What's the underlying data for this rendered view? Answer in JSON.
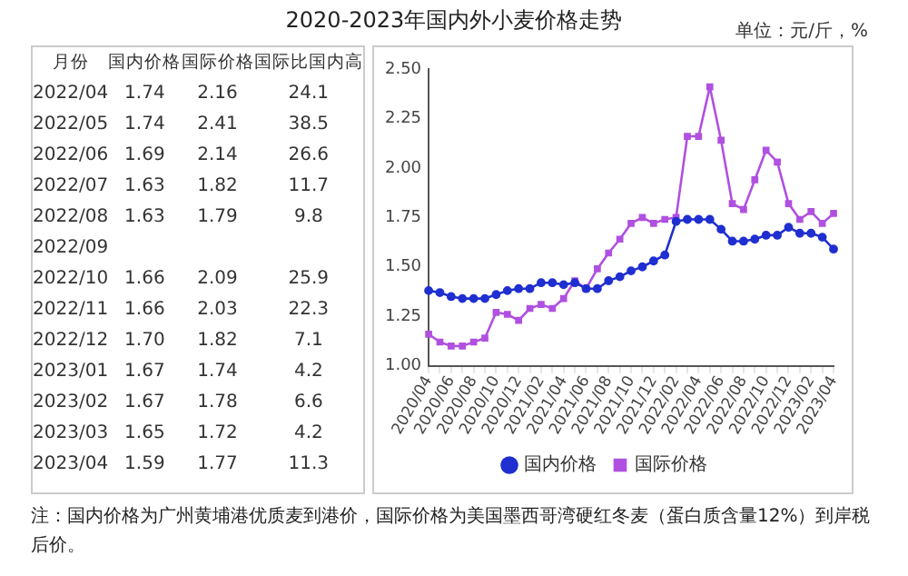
{
  "chart_data": [
    {
      "type": "other",
      "xlabel": "月份",
      "data_labels": true,
      "categories": [
        "2022/04",
        "2022/05",
        "2022/06",
        "2022/07",
        "2022/08",
        "2022/09",
        "2022/10",
        "2022/11",
        "2022/12",
        "2023/01",
        "2023/02",
        "2023/03",
        "2023/04"
      ],
      "series": [
        {
          "name": "国内价格",
          "values": [
            1.74,
            1.74,
            1.69,
            1.63,
            1.63,
            null,
            1.66,
            1.66,
            1.7,
            1.67,
            1.67,
            1.65,
            1.59
          ],
          "value_labels": [
            "1.74",
            "1.74",
            "1.69",
            "1.63",
            "1.63",
            null,
            "1.66",
            "1.66",
            "1.70",
            "1.67",
            "1.67",
            "1.65",
            "1.59"
          ]
        },
        {
          "name": "国际价格",
          "values": [
            2.16,
            2.41,
            2.14,
            1.82,
            1.79,
            null,
            2.09,
            2.03,
            1.82,
            1.74,
            1.78,
            1.72,
            1.77
          ]
        },
        {
          "name": "国际比国内高",
          "values": [
            24.1,
            38.5,
            26.6,
            11.7,
            9.8,
            null,
            25.9,
            22.3,
            7.1,
            4.2,
            6.6,
            4.2,
            11.3
          ]
        }
      ]
    },
    {
      "type": "line",
      "title": "2020-2023年国内外小麦价格走势",
      "annotations": [
        "单位：元/斤，%",
        "注：国内价格为广州黄埔港优质麦到港价，国际价格为美国墨西哥湾硬红冬麦（蛋白质含量12%）到岸税后价。"
      ],
      "categories": [
        "2020/04",
        null,
        "2020/06",
        null,
        "2020/08",
        null,
        "2020/10",
        null,
        "2020/12",
        null,
        "2021/02",
        null,
        "2021/04",
        null,
        "2021/06",
        null,
        "2021/08",
        null,
        "2021/10",
        null,
        "2021/12",
        null,
        "2022/02",
        null,
        "2022/04",
        null,
        "2022/06",
        null,
        "2022/08",
        null,
        "2022/10",
        null,
        "2022/12",
        null,
        "2023/02",
        null,
        "2023/04"
      ],
      "ylim": [
        1,
        2.5
      ],
      "yticks": [
        {
          "value": 1,
          "label": "1.00"
        },
        {
          "value": 1.25,
          "label": "1.25"
        },
        {
          "value": 1.5,
          "label": "1.50"
        },
        {
          "value": 1.75,
          "label": "1.75"
        },
        {
          "value": 2,
          "label": "2.00"
        },
        {
          "value": 2.25,
          "label": "2.25"
        },
        {
          "value": 2.5,
          "label": "2.50"
        }
      ],
      "grid": false,
      "legend": "bottom",
      "line_style": "solid",
      "series": [
        {
          "name": "国内价格",
          "color": "#1f2fd0",
          "marker": "circle",
          "values": [
            1.38,
            1.37,
            1.35,
            1.34,
            1.34,
            1.34,
            1.36,
            1.38,
            1.39,
            1.39,
            1.42,
            1.42,
            1.41,
            1.42,
            1.39,
            1.39,
            1.43,
            1.45,
            1.48,
            1.5,
            1.53,
            1.56,
            1.73,
            1.74,
            1.74,
            1.74,
            1.69,
            1.63,
            1.63,
            1.64,
            1.66,
            1.66,
            1.7,
            1.67,
            1.67,
            1.65,
            1.59
          ]
        },
        {
          "name": "国际价格",
          "color": "#b050e0",
          "marker": "square",
          "values": [
            1.16,
            1.12,
            1.1,
            1.1,
            1.12,
            1.14,
            1.27,
            1.26,
            1.23,
            1.29,
            1.31,
            1.29,
            1.34,
            1.43,
            1.39,
            1.49,
            1.57,
            1.64,
            1.72,
            1.75,
            1.72,
            1.74,
            1.75,
            2.16,
            2.16,
            2.41,
            2.14,
            1.82,
            1.79,
            1.94,
            2.09,
            2.03,
            1.82,
            1.74,
            1.78,
            1.72,
            1.77
          ]
        }
      ]
    }
  ]
}
